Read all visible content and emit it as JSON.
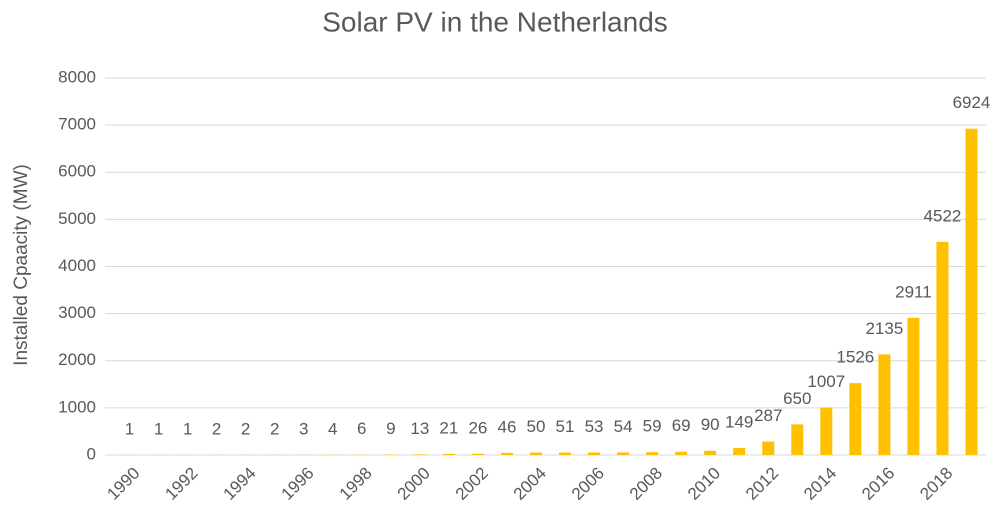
{
  "chart_data": {
    "type": "bar",
    "title": "Solar PV in the Netherlands",
    "y_label": "Installed Cpaacity (MW)",
    "categories": [
      "1990",
      null,
      "1992",
      null,
      "1994",
      null,
      "1996",
      null,
      "1998",
      null,
      "2000",
      null,
      "2002",
      null,
      "2004",
      null,
      "2006",
      null,
      "2008",
      null,
      "2010",
      null,
      "2012",
      null,
      "2014",
      null,
      "2016",
      null,
      "2018",
      null
    ],
    "values": [
      1,
      1,
      1,
      2,
      2,
      2,
      3,
      4,
      6,
      9,
      13,
      21,
      26,
      46,
      50,
      51,
      53,
      54,
      59,
      69,
      90,
      149,
      287,
      650,
      1007,
      1526,
      2135,
      2911,
      4522,
      6924
    ],
    "color": "#ffc000",
    "ylim": [
      0,
      8000
    ],
    "yticks": [
      0,
      1000,
      2000,
      3000,
      4000,
      5000,
      6000,
      7000,
      8000
    ],
    "grid": true
  }
}
